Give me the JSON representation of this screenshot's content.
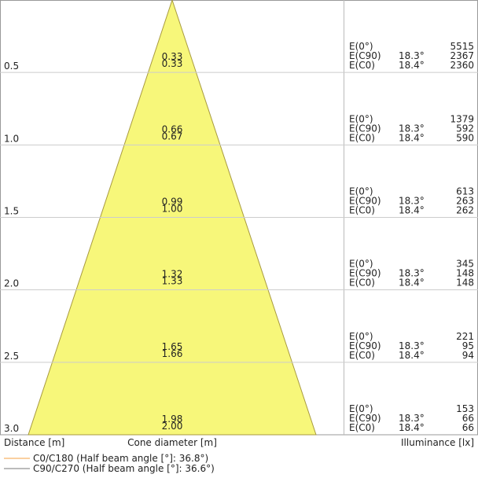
{
  "rows": [
    {
      "distance": "0.5",
      "diameters": [
        "0.33",
        "0.33"
      ],
      "illuminance": [
        "5515",
        "2367",
        "2360"
      ]
    },
    {
      "distance": "1.0",
      "diameters": [
        "0.66",
        "0.67"
      ],
      "illuminance": [
        "1379",
        "592",
        "590"
      ]
    },
    {
      "distance": "1.5",
      "diameters": [
        "0.99",
        "1.00"
      ],
      "illuminance": [
        "613",
        "263",
        "262"
      ]
    },
    {
      "distance": "2.0",
      "diameters": [
        "1.32",
        "1.33"
      ],
      "illuminance": [
        "345",
        "148",
        "148"
      ]
    },
    {
      "distance": "2.5",
      "diameters": [
        "1.65",
        "1.66"
      ],
      "illuminance": [
        "221",
        "95",
        "94"
      ]
    },
    {
      "distance": "3.0",
      "diameters": [
        "1.98",
        "2.00"
      ],
      "illuminance": [
        "153",
        "66",
        "66"
      ]
    }
  ],
  "row_labels": [
    "E(0°)",
    "E(C90)",
    "E(C0)"
  ],
  "angles": [
    "18.3°",
    "18.4°"
  ],
  "footer": {
    "distance": "Distance [m]",
    "diameter": "Cone diameter [m]",
    "illuminance": "Illuminance [lx]"
  },
  "legend": [
    "C0/C180 (Half beam angle [°]: 36.8°)",
    "C90/C270 (Half beam angle [°]: 36.6°)"
  ]
}
